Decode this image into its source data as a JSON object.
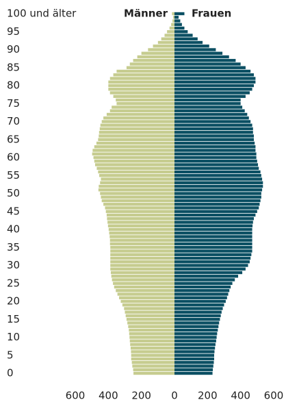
{
  "chart_data": {
    "type": "pyramid",
    "categories": [
      "0",
      null,
      null,
      null,
      null,
      "5",
      null,
      null,
      null,
      null,
      "10",
      null,
      null,
      null,
      null,
      "15",
      null,
      null,
      null,
      null,
      "20",
      null,
      null,
      null,
      null,
      "25",
      null,
      null,
      null,
      null,
      "30",
      null,
      null,
      null,
      null,
      "35",
      null,
      null,
      null,
      null,
      "40",
      null,
      null,
      null,
      null,
      "45",
      null,
      null,
      null,
      null,
      "50",
      null,
      null,
      null,
      null,
      "55",
      null,
      null,
      null,
      null,
      "60",
      null,
      null,
      null,
      null,
      "65",
      null,
      null,
      null,
      null,
      "70",
      null,
      null,
      null,
      null,
      "75",
      null,
      null,
      null,
      null,
      "80",
      null,
      null,
      null,
      null,
      "85",
      null,
      null,
      null,
      null,
      "90",
      null,
      null,
      null,
      null,
      "95",
      null,
      null,
      null,
      null,
      "100 und älter"
    ],
    "series": [
      {
        "name": "Männer",
        "color": "#c6cc8f",
        "values": [
          248,
          250,
          255,
          258,
          262,
          262,
          263,
          265,
          268,
          270,
          272,
          274,
          276,
          280,
          285,
          290,
          295,
          300,
          305,
          315,
          325,
          335,
          345,
          355,
          365,
          372,
          378,
          382,
          385,
          388,
          388,
          388,
          388,
          388,
          388,
          388,
          390,
          390,
          392,
          395,
          398,
          402,
          405,
          408,
          410,
          415,
          420,
          430,
          440,
          445,
          450,
          460,
          458,
          450,
          445,
          455,
          462,
          470,
          480,
          485,
          490,
          498,
          495,
          485,
          472,
          462,
          458,
          456,
          452,
          448,
          440,
          430,
          410,
          390,
          380,
          350,
          355,
          370,
          390,
          400,
          400,
          400,
          390,
          370,
          350,
          290,
          270,
          250,
          225,
          200,
          160,
          130,
          100,
          80,
          60,
          45,
          30,
          20,
          12,
          8,
          15
        ]
      },
      {
        "name": "Frauen",
        "color": "#0b4f63",
        "values": [
          230,
          232,
          235,
          238,
          240,
          240,
          242,
          245,
          248,
          252,
          255,
          258,
          262,
          266,
          270,
          275,
          280,
          285,
          292,
          300,
          310,
          318,
          325,
          332,
          340,
          350,
          365,
          385,
          410,
          430,
          445,
          455,
          460,
          465,
          470,
          470,
          470,
          470,
          470,
          470,
          470,
          472,
          475,
          480,
          490,
          500,
          510,
          515,
          520,
          525,
          525,
          530,
          535,
          535,
          530,
          525,
          520,
          510,
          505,
          500,
          495,
          495,
          490,
          490,
          485,
          480,
          480,
          475,
          475,
          470,
          460,
          450,
          440,
          425,
          410,
          400,
          400,
          430,
          455,
          470,
          480,
          490,
          490,
          480,
          460,
          430,
          400,
          370,
          330,
          290,
          250,
          210,
          170,
          140,
          110,
          80,
          60,
          45,
          35,
          25,
          60
        ]
      }
    ],
    "xlim": [
      -600,
      600
    ],
    "xticks": [
      {
        "value": -600,
        "label": "600"
      },
      {
        "value": -400,
        "label": "400"
      },
      {
        "value": -200,
        "label": "200"
      },
      0,
      200,
      400,
      600
    ]
  }
}
